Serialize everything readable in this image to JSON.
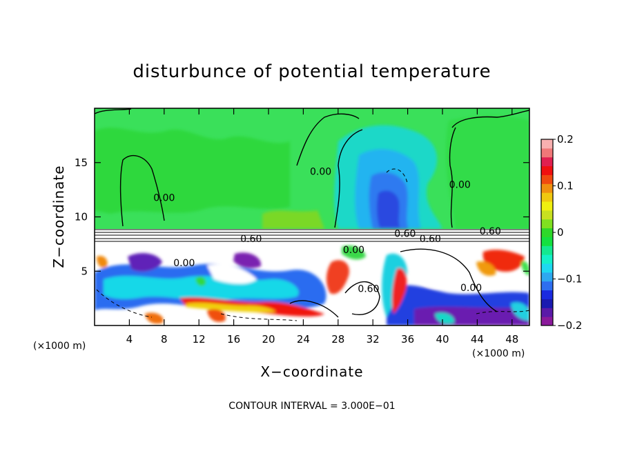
{
  "chart_data": {
    "type": "heatmap",
    "title": "disturbunce of potential temperature",
    "xlabel": "X−coordinate",
    "ylabel": "Z−coordinate",
    "x_unit_left": "(×1000 m)",
    "x_unit_right": "(×1000 m)",
    "footer": "CONTOUR INTERVAL = 3.000E−01",
    "xlim": [
      0,
      50
    ],
    "ylim": [
      0,
      20
    ],
    "x_ticks": [
      4,
      8,
      12,
      16,
      20,
      24,
      28,
      32,
      36,
      40,
      44,
      48
    ],
    "x_tick_labels": [
      "4",
      "8",
      "12",
      "16",
      "20",
      "24",
      "28",
      "32",
      "36",
      "40",
      "44",
      "48"
    ],
    "y_ticks": [
      5,
      10,
      15
    ],
    "y_tick_labels": [
      "5",
      "10",
      "15"
    ],
    "colorbar": {
      "min": -0.2,
      "max": 0.2,
      "ticks": [
        0.2,
        0.1,
        0,
        -0.1,
        -0.2
      ],
      "tick_labels": [
        "0.2",
        "0.1",
        "0",
        "−0.1",
        "−0.2"
      ],
      "colors": [
        "#8b1a9b",
        "#5a1aa8",
        "#1a1ab0",
        "#1a2ae0",
        "#2e6ef0",
        "#2ea8f0",
        "#1ed8f0",
        "#14f0c8",
        "#14e890",
        "#14e040",
        "#2ed82a",
        "#80e020",
        "#c8e020",
        "#f0f010",
        "#f0c810",
        "#f09010",
        "#f04a10",
        "#f01010",
        "#e02050",
        "#f07878",
        "#f8b0b0"
      ]
    },
    "contour_labels": [
      {
        "text": "0.60",
        "x": 35.7,
        "z": 8.3
      },
      {
        "text": "0.60",
        "x": 18.0,
        "z": 7.8
      },
      {
        "text": "0.60",
        "x": 45.5,
        "z": 8.5
      },
      {
        "text": "0.60",
        "x": 38.6,
        "z": 7.8
      },
      {
        "text": "0.00",
        "x": 8.0,
        "z": 11.6
      },
      {
        "text": "0.00",
        "x": 26.0,
        "z": 14.0
      },
      {
        "text": "0.00",
        "x": 42.0,
        "z": 12.8
      },
      {
        "text": "0.00",
        "x": 29.8,
        "z": 6.8
      },
      {
        "text": "0.00",
        "x": 10.3,
        "z": 5.6
      },
      {
        "text": "0.60",
        "x": 31.5,
        "z": 3.2
      },
      {
        "text": "0.00",
        "x": 43.3,
        "z": 3.3
      }
    ]
  }
}
